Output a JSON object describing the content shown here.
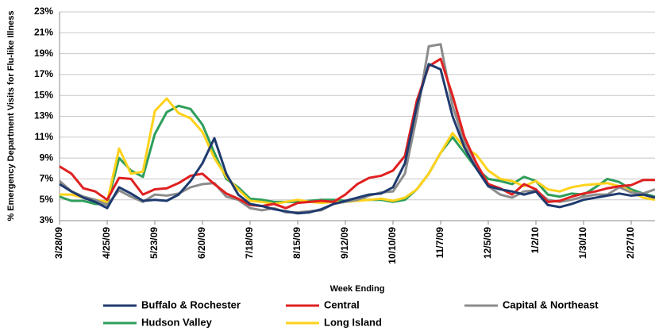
{
  "chart_data": {
    "type": "line",
    "y_label": "% Emergency Department Visits for Flu-like Illness",
    "x_label": "Week Ending",
    "categories": [
      "3/28/09",
      null,
      null,
      null,
      "4/25/09",
      null,
      null,
      null,
      "5/23/09",
      null,
      null,
      null,
      "6/20/09",
      null,
      null,
      null,
      "7/18/09",
      null,
      null,
      null,
      "8/15/09",
      null,
      null,
      null,
      "9/12/09",
      null,
      null,
      null,
      "10/10/09",
      null,
      null,
      null,
      "11/7/09",
      null,
      null,
      null,
      "12/5/09",
      null,
      null,
      null,
      "1/2/10",
      null,
      null,
      null,
      "1/30/10",
      null,
      null,
      null,
      "2/27/10",
      null,
      null
    ],
    "ylim": [
      3,
      23
    ],
    "yticks": [
      {
        "value": 3,
        "label": "3%"
      },
      {
        "value": 5,
        "label": "5%"
      },
      {
        "value": 7,
        "label": "7%"
      },
      {
        "value": 9,
        "label": "9%"
      },
      {
        "value": 11,
        "label": "11%"
      },
      {
        "value": 13,
        "label": "13%"
      },
      {
        "value": 15,
        "label": "15%"
      },
      {
        "value": 17,
        "label": "17%"
      },
      {
        "value": 19,
        "label": "19%"
      },
      {
        "value": 21,
        "label": "21%"
      },
      {
        "value": 23,
        "label": "23%"
      }
    ],
    "grid": true,
    "series": [
      {
        "name": "Buffalo & Rochester",
        "color": "#1f3a6e",
        "values": [
          6.5,
          5.8,
          5.2,
          4.8,
          4.2,
          6.2,
          5.6,
          4.9,
          5.0,
          4.9,
          5.5,
          6.8,
          8.5,
          10.9,
          7.5,
          5.5,
          4.6,
          4.4,
          4.1,
          3.9,
          3.7,
          3.8,
          4.1,
          4.6,
          4.9,
          5.2,
          5.5,
          5.6,
          6.2,
          8.5,
          14,
          18,
          17.5,
          13,
          10,
          8,
          6.3,
          6,
          5.8,
          5.5,
          5.8,
          4.5,
          4.3,
          4.6,
          5,
          5.2,
          5.4,
          5.6,
          5.4,
          5.5,
          5.2
        ]
      },
      {
        "name": "Central",
        "color": "#e02020",
        "values": [
          8.2,
          7.5,
          6.1,
          5.8,
          5.0,
          7.1,
          7.0,
          5.5,
          6.0,
          6.1,
          6.6,
          7.3,
          7.5,
          6.5,
          5.6,
          5.1,
          4.5,
          4.4,
          4.6,
          4.2,
          4.7,
          4.8,
          4.9,
          4.8,
          5.5,
          6.5,
          7.1,
          7.3,
          7.8,
          9.2,
          14.5,
          17.8,
          18.5,
          15,
          11,
          8.5,
          6.5,
          6.1,
          5.5,
          6.5,
          6.0,
          4.8,
          4.9,
          5.3,
          5.6,
          5.8,
          6.1,
          6.3,
          6.4,
          6.9,
          6.9
        ]
      },
      {
        "name": "Capital & Northeast",
        "color": "#8c8c8c",
        "values": [
          6.8,
          5.8,
          5.3,
          5.0,
          4.5,
          5.9,
          5.3,
          4.8,
          5.5,
          5.4,
          5.6,
          6.2,
          6.5,
          6.6,
          5.3,
          5.0,
          4.2,
          4.0,
          4.2,
          3.8,
          3.8,
          3.9,
          4.0,
          4.6,
          4.8,
          5.0,
          5.4,
          5.7,
          5.8,
          7.5,
          13,
          19.7,
          19.9,
          14,
          10.5,
          8.5,
          6.3,
          5.5,
          5.2,
          5.8,
          5.9,
          5.0,
          4.8,
          5.0,
          5.3,
          5.5,
          5.5,
          6.2,
          5.7,
          5.6,
          6.0
        ]
      },
      {
        "name": "Hudson Valley",
        "color": "#2e9e5b",
        "values": [
          5.3,
          4.9,
          4.9,
          4.6,
          4.6,
          9.0,
          7.8,
          7.2,
          11.3,
          13.4,
          14.0,
          13.7,
          12.2,
          9.5,
          7.0,
          6.2,
          5.1,
          5.0,
          4.8,
          4.8,
          4.8,
          4.9,
          5.0,
          5.0,
          4.9,
          5.0,
          5.0,
          5.0,
          4.8,
          5.0,
          6.0,
          7.5,
          9.5,
          11,
          9.5,
          8,
          7,
          6.8,
          6.5,
          7.2,
          6.8,
          5.5,
          5.3,
          5.6,
          5.5,
          6.2,
          7.0,
          6.7,
          6.0,
          5.6,
          5.3
        ]
      },
      {
        "name": "Long Island",
        "color": "#ffd21a",
        "values": [
          5.5,
          5.5,
          5.2,
          5.0,
          4.8,
          9.9,
          7.5,
          7.7,
          13.5,
          14.7,
          13.3,
          12.8,
          11.5,
          9.0,
          7.2,
          6.0,
          4.9,
          4.8,
          4.6,
          4.8,
          5.0,
          4.8,
          4.7,
          4.8,
          4.8,
          4.9,
          5.0,
          5.1,
          4.9,
          5.2,
          6.0,
          7.5,
          9.5,
          11.4,
          10,
          9.3,
          7.8,
          7,
          6.8,
          6.3,
          6.8,
          6.0,
          5.8,
          6.2,
          6.4,
          6.5,
          6.6,
          6.3,
          5.8,
          5.2,
          5.0
        ]
      }
    ]
  }
}
